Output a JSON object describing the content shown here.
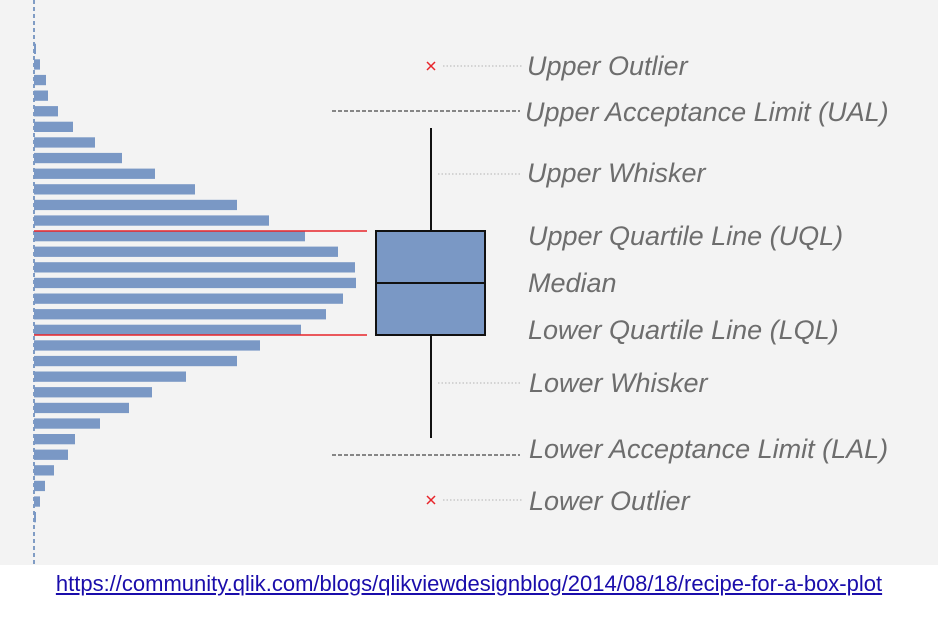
{
  "labels": {
    "upper_outlier": "Upper Outlier",
    "ual": "Upper Acceptance Limit (UAL)",
    "upper_whisker": "Upper Whisker",
    "uql": "Upper Quartile Line (UQL)",
    "median": "Median",
    "lql": "Lower Quartile Line (LQL)",
    "lower_whisker": "Lower Whisker",
    "lal": "Lower Acceptance Limit (LAL)",
    "lower_outlier": "Lower Outlier"
  },
  "histogram": {
    "bar_lengths": [
      2,
      6,
      12,
      14,
      24,
      39,
      61,
      88,
      121,
      161,
      203,
      235,
      271,
      304,
      321,
      322,
      309,
      292,
      267,
      226,
      203,
      152,
      118,
      95,
      66,
      41,
      34,
      20,
      11,
      6,
      2
    ],
    "max_value": 330
  },
  "colors": {
    "bar": "#7a98c5",
    "box": "#7a98c5",
    "quartile_line": "#e8242a",
    "outlier": "#e8242a",
    "label": "#6d6d6d",
    "axis": "#5a7fb5"
  },
  "source_url": "https://community.qlik.com/blogs/qlikviewdesignblog/2014/08/18/recipe-for-a-box-plot"
}
